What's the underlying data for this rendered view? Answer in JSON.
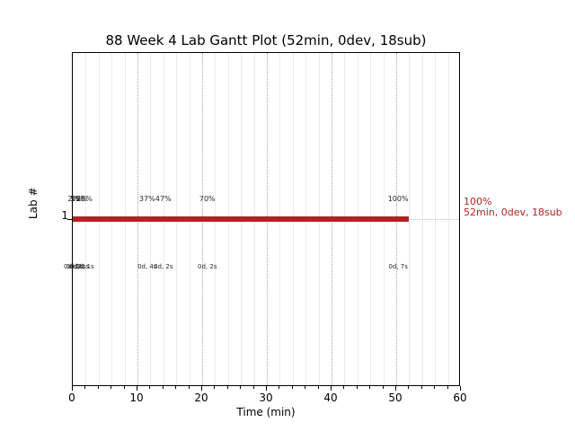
{
  "chart_data": {
    "type": "gantt",
    "title": "88 Week 4 Lab Gantt Plot (52min, 0dev, 18sub)",
    "xlabel": "Time (min)",
    "ylabel": "Lab #",
    "xlim": [
      0,
      60
    ],
    "x_ticks": [
      0,
      10,
      20,
      30,
      40,
      50,
      60
    ],
    "x_minor_step": 2,
    "y_ticks": [
      "1"
    ],
    "grid": {
      "vertical_major": "dotted",
      "vertical_minor": "solid-light",
      "horizontal_row": "dotted"
    },
    "bar": {
      "lab": "1",
      "start_min": 0,
      "end_min": 52,
      "color": "#b22222"
    },
    "events": [
      {
        "t_min": 0.1,
        "percent": "2%",
        "dev_sub": "0d, 0s"
      },
      {
        "t_min": 0.5,
        "percent": "5%",
        "dev_sub": "0d, 1s"
      },
      {
        "t_min": 1.0,
        "percent": "25%",
        "dev_sub": "0d, 1s"
      },
      {
        "t_min": 1.8,
        "percent": "28%",
        "dev_sub": "0d, 1s"
      },
      {
        "t_min": 11.5,
        "percent": "37%",
        "dev_sub": "0d, 4s"
      },
      {
        "t_min": 14.0,
        "percent": "47%",
        "dev_sub": "0d, 2s"
      },
      {
        "t_min": 20.8,
        "percent": "70%",
        "dev_sub": "0d, 2s"
      },
      {
        "t_min": 50.3,
        "percent": "100%",
        "dev_sub": "0d, 7s"
      }
    ],
    "end_annotation": {
      "line1": "100%",
      "line2": "52min, 0dev, 18sub",
      "color": "#b22222"
    },
    "colors": {
      "bar": "#b22222",
      "annotation": "#b22222",
      "grid_minor": "#ececec",
      "grid_major": "#a8a8a8",
      "row_dotted": "#c0c0c0",
      "axis": "#000000"
    }
  }
}
